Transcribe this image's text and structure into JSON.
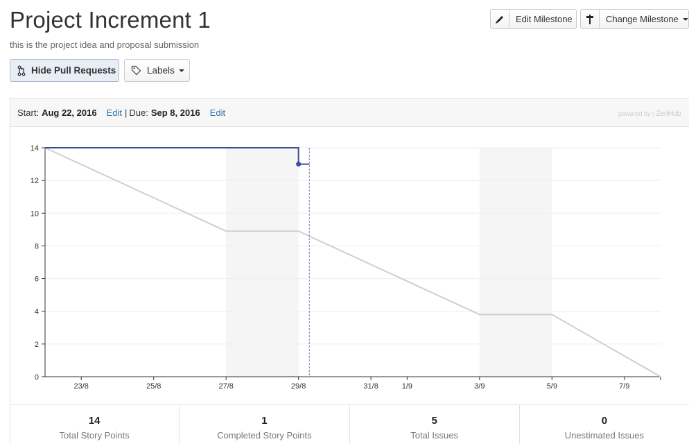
{
  "page": {
    "title": "Project Increment 1",
    "description": "this is the project idea and proposal submission"
  },
  "toolbar": {
    "edit_milestone": "Edit Milestone",
    "change_milestone": "Change Milestone",
    "hide_pull_requests": "Hide Pull Requests",
    "labels": "Labels"
  },
  "milestone": {
    "start_label": "Start:",
    "start_date": "Aug 22, 2016",
    "start_edit": "Edit",
    "separator": "|",
    "due_label": "Due:",
    "due_date": "Sep 8, 2016",
    "due_edit": "Edit",
    "powered_by": "powered by",
    "powered_brand": "ZenHub"
  },
  "colors": {
    "remaining_line": "#3d4b9a",
    "ideal_line": "#cfcfcf",
    "weekend_band": "#f5f5f5",
    "today_line": "#7b84c4",
    "link": "#2c73b3"
  },
  "chart_data": {
    "type": "line",
    "y_ticks": [
      0,
      2,
      4,
      6,
      8,
      10,
      12,
      14
    ],
    "ylim": [
      0,
      14
    ],
    "x_ticks": [
      "23/8",
      "25/8",
      "27/8",
      "29/8",
      "31/8",
      "1/9",
      "3/9",
      "5/9",
      "7/9"
    ],
    "x_tick_days": [
      1,
      3,
      5,
      7,
      9,
      10,
      12,
      14,
      16
    ],
    "x_range_days": [
      0,
      17
    ],
    "weekend_bands_days": [
      [
        5,
        7
      ],
      [
        12,
        14
      ]
    ],
    "today_day": 7.3,
    "series": [
      {
        "points": [
          [
            0,
            14
          ],
          [
            7,
            14
          ],
          [
            7,
            13
          ],
          [
            7.3,
            13
          ]
        ]
      },
      {
        "points": [
          [
            0,
            14
          ],
          [
            5,
            8.9
          ],
          [
            7,
            8.9
          ],
          [
            12,
            3.8
          ],
          [
            14,
            3.8
          ],
          [
            17,
            0
          ]
        ]
      }
    ],
    "marker": [
      7,
      13
    ]
  },
  "stats": [
    {
      "value": "14",
      "label": "Total Story Points"
    },
    {
      "value": "1",
      "label": "Completed Story Points"
    },
    {
      "value": "5",
      "label": "Total Issues"
    },
    {
      "value": "0",
      "label": "Unestimated Issues"
    }
  ]
}
